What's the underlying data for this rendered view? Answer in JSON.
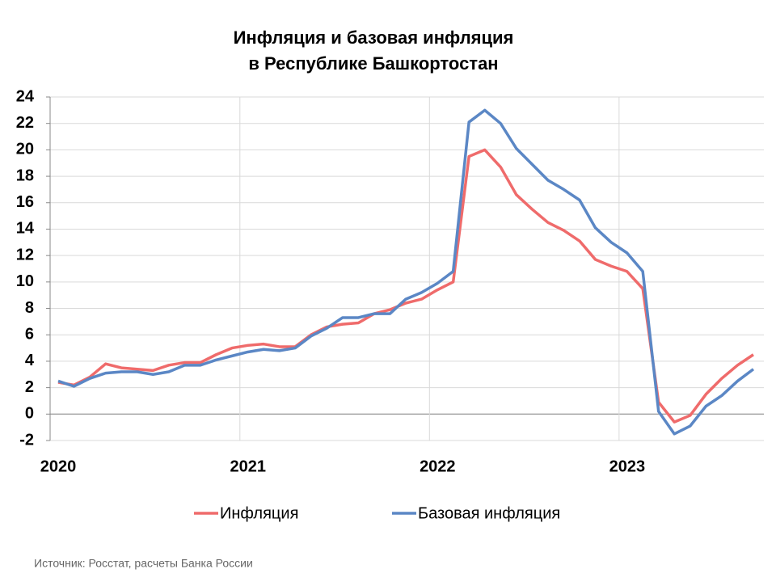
{
  "chart_data": {
    "type": "line",
    "title": "Инфляция и базовая инфляция",
    "subtitle": "в  Республике Башкортостан",
    "source": "Источник: Росстат, расчеты Банка России",
    "categories": [
      "2020",
      null,
      null,
      null,
      null,
      null,
      null,
      null,
      null,
      null,
      null,
      null,
      "2021",
      null,
      null,
      null,
      null,
      null,
      null,
      null,
      null,
      null,
      null,
      null,
      "2022",
      null,
      null,
      null,
      null,
      null,
      null,
      null,
      null,
      null,
      null,
      null,
      "2023",
      null,
      null,
      null,
      null,
      null,
      null,
      null,
      null
    ],
    "series": [
      {
        "name": "Инфляция",
        "color": "#ef6b6b",
        "values": [
          2.4,
          2.2,
          2.8,
          3.8,
          3.5,
          3.4,
          3.3,
          3.7,
          3.9,
          3.9,
          4.5,
          5.0,
          5.2,
          5.3,
          5.1,
          5.1,
          6.0,
          6.6,
          6.8,
          6.9,
          7.6,
          7.9,
          8.4,
          8.7,
          9.4,
          10.0,
          19.5,
          20.0,
          18.7,
          16.6,
          15.5,
          14.5,
          13.9,
          13.1,
          11.7,
          11.2,
          10.8,
          9.5,
          0.9,
          -0.6,
          -0.1,
          1.5,
          2.7,
          3.7,
          4.5
        ]
      },
      {
        "name": "Базовая инфляция",
        "color": "#5b87c5",
        "values": [
          2.5,
          2.1,
          2.7,
          3.1,
          3.2,
          3.2,
          3.0,
          3.2,
          3.7,
          3.7,
          4.1,
          4.4,
          4.7,
          4.9,
          4.8,
          5.0,
          5.9,
          6.5,
          7.3,
          7.3,
          7.6,
          7.6,
          8.7,
          9.2,
          9.9,
          10.8,
          22.1,
          23.0,
          22.0,
          20.1,
          18.9,
          17.7,
          17.0,
          16.2,
          14.1,
          13.0,
          12.2,
          10.8,
          0.2,
          -1.5,
          -0.9,
          0.6,
          1.4,
          2.5,
          3.4
        ]
      }
    ],
    "ylim": [
      -2,
      24
    ],
    "yticks": [
      -2,
      0,
      2,
      4,
      6,
      8,
      10,
      12,
      14,
      16,
      18,
      20,
      22,
      24
    ],
    "grid": true,
    "legend": "bottom"
  }
}
